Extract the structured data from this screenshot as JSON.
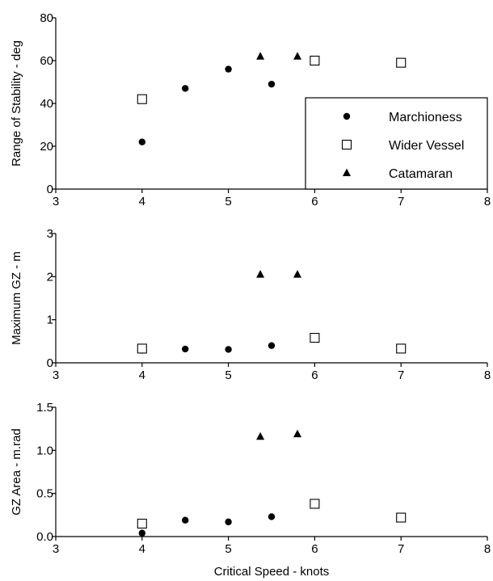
{
  "chart_data": [
    {
      "type": "scatter",
      "ylabel": "Range of Stability - deg",
      "xlim": [
        3,
        8
      ],
      "ylim": [
        0,
        80
      ],
      "xticks": [
        "3",
        "4",
        "5",
        "6",
        "7",
        "8"
      ],
      "yticks": [
        "0",
        "20",
        "40",
        "60",
        "80"
      ],
      "legend": {
        "position": "bottom-right"
      },
      "series": [
        {
          "name": "Marchioness",
          "marker": "circle",
          "points": [
            [
              4.0,
              22
            ],
            [
              4.5,
              47
            ],
            [
              5.0,
              56
            ],
            [
              5.5,
              49
            ]
          ]
        },
        {
          "name": "Wider Vessel",
          "marker": "square",
          "points": [
            [
              4.0,
              42
            ],
            [
              6.0,
              60
            ],
            [
              7.0,
              59
            ]
          ]
        },
        {
          "name": "Catamaran",
          "marker": "triangle",
          "points": [
            [
              5.37,
              62
            ],
            [
              5.8,
              62
            ]
          ]
        }
      ]
    },
    {
      "type": "scatter",
      "ylabel": "Maximum GZ - m",
      "xlim": [
        3,
        8
      ],
      "ylim": [
        0,
        3
      ],
      "xticks": [
        "3",
        "4",
        "5",
        "6",
        "7",
        "8"
      ],
      "yticks": [
        "0",
        "1",
        "2",
        "3"
      ],
      "series": [
        {
          "name": "Marchioness",
          "marker": "circle",
          "points": [
            [
              4.0,
              0.29
            ],
            [
              4.5,
              0.32
            ],
            [
              5.0,
              0.31
            ],
            [
              5.5,
              0.4
            ]
          ]
        },
        {
          "name": "Wider Vessel",
          "marker": "square",
          "points": [
            [
              4.0,
              0.33
            ],
            [
              6.0,
              0.58
            ],
            [
              7.0,
              0.33
            ]
          ]
        },
        {
          "name": "Catamaran",
          "marker": "triangle",
          "points": [
            [
              5.37,
              2.05
            ],
            [
              5.8,
              2.05
            ]
          ]
        }
      ]
    },
    {
      "type": "scatter",
      "ylabel": "GZ Area - m.rad",
      "xlabel": "Critical Speed - knots",
      "xlim": [
        3,
        8
      ],
      "ylim": [
        0,
        1.5
      ],
      "xticks": [
        "3",
        "4",
        "5",
        "6",
        "7",
        "8"
      ],
      "yticks": [
        "0.0",
        "0.5",
        "1.0",
        "1.5"
      ],
      "series": [
        {
          "name": "Marchioness",
          "marker": "circle",
          "points": [
            [
              4.0,
              0.04
            ],
            [
              4.5,
              0.19
            ],
            [
              5.0,
              0.17
            ],
            [
              5.5,
              0.23
            ]
          ]
        },
        {
          "name": "Wider Vessel",
          "marker": "square",
          "points": [
            [
              4.0,
              0.15
            ],
            [
              6.0,
              0.38
            ],
            [
              7.0,
              0.22
            ]
          ]
        },
        {
          "name": "Catamaran",
          "marker": "triangle",
          "points": [
            [
              5.37,
              1.16
            ],
            [
              5.8,
              1.19
            ]
          ]
        }
      ]
    }
  ]
}
